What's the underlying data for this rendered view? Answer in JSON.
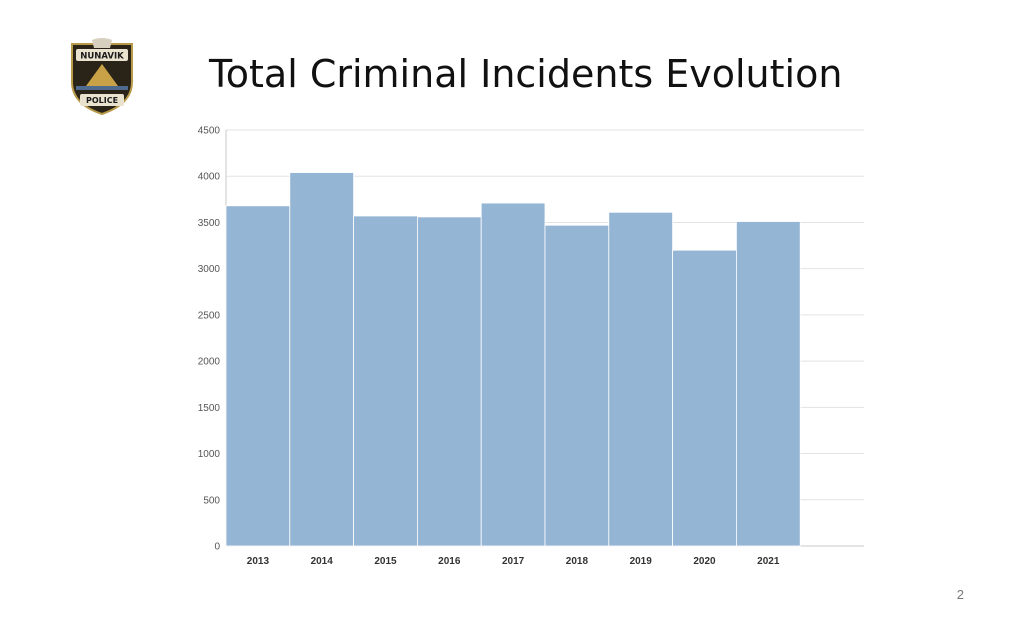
{
  "slide": {
    "title": "Total Criminal Incidents Evolution",
    "page_number": "2",
    "logo": {
      "top_text": "NUNAVIK",
      "bottom_text": "POLICE"
    }
  },
  "colors": {
    "bar": "#95b5d4",
    "bar_edge": "#ffffff",
    "grid": "#e3e3e3",
    "axis": "#c8c8c8"
  },
  "chart_data": {
    "type": "bar",
    "title": "",
    "xlabel": "",
    "ylabel": "",
    "categories": [
      "2013",
      "2014",
      "2015",
      "2016",
      "2017",
      "2018",
      "2019",
      "2020",
      "2021"
    ],
    "values": [
      3680,
      4040,
      3570,
      3560,
      3710,
      3470,
      3610,
      3200,
      3510
    ],
    "ylim": [
      0,
      4500
    ],
    "yticks": [
      0,
      500,
      1000,
      1500,
      2000,
      2500,
      3000,
      3500,
      4000,
      4500
    ],
    "grid": true,
    "bar_gap": "none"
  }
}
